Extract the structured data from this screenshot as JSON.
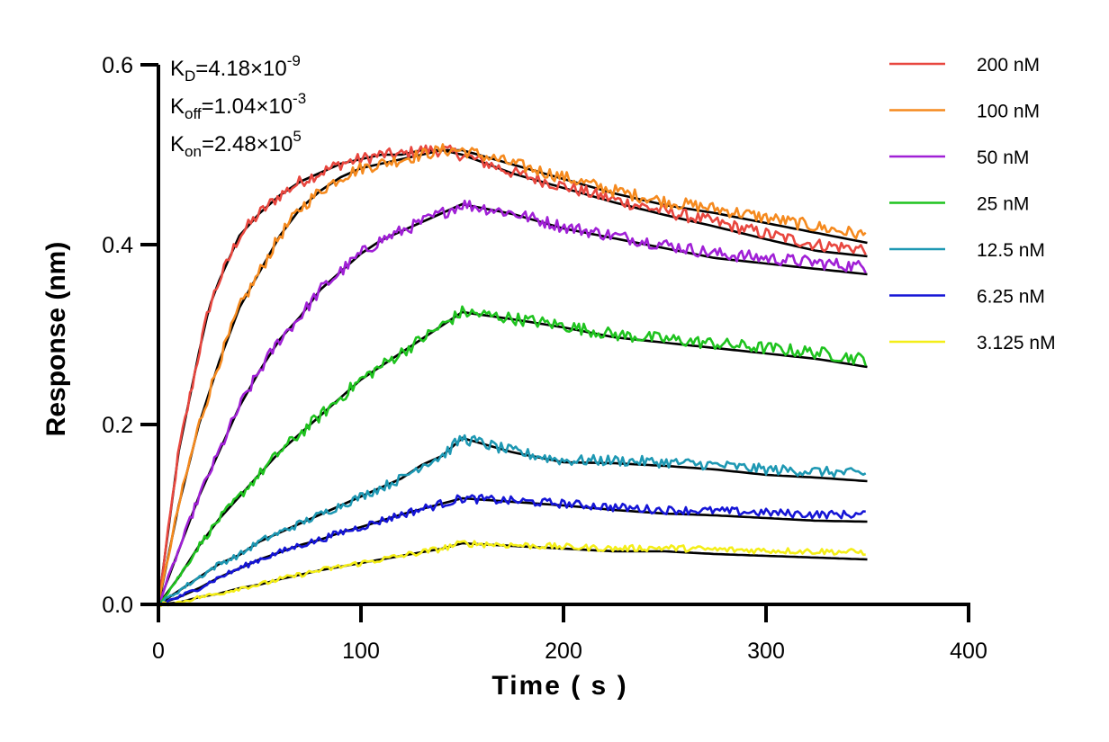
{
  "chart_data": {
    "type": "line",
    "xlabel": "Time ( s )",
    "ylabel": "Response (nm)",
    "xlim": [
      0,
      400
    ],
    "ylim": [
      0,
      0.6
    ],
    "x_ticks": [
      "0",
      "100",
      "200",
      "300",
      "400"
    ],
    "y_ticks": [
      "0.0",
      "0.2",
      "0.4",
      "0.6"
    ],
    "grid": false,
    "legend_position": "top-right",
    "annotations": [
      {
        "main": "K",
        "sub": "D",
        "rest": "=4.18×10",
        "sup": "-9"
      },
      {
        "main": "K",
        "sub": "off",
        "rest": "=1.04×10",
        "sup": "-3"
      },
      {
        "main": "K",
        "sub": "on",
        "rest": "=2.48×10",
        "sup": "5"
      }
    ],
    "fit_color": "#000000",
    "series": [
      {
        "name": "200 nM",
        "color": "#e8473f",
        "x": [
          0,
          10,
          20,
          25,
          30,
          40,
          50,
          60,
          70,
          80,
          90,
          100,
          110,
          120,
          130,
          140,
          150,
          175,
          200,
          225,
          250,
          275,
          300,
          325,
          350
        ],
        "y": [
          0,
          0.17,
          0.28,
          0.33,
          0.36,
          0.41,
          0.435,
          0.455,
          0.47,
          0.48,
          0.49,
          0.495,
          0.5,
          0.5,
          0.505,
          0.505,
          0.5,
          0.48,
          0.465,
          0.45,
          0.437,
          0.425,
          0.412,
          0.4,
          0.395
        ]
      },
      {
        "name": "100 nM",
        "color": "#f58a1f",
        "x": [
          0,
          10,
          20,
          30,
          40,
          50,
          60,
          70,
          80,
          90,
          100,
          110,
          120,
          130,
          140,
          150,
          175,
          200,
          225,
          250,
          275,
          300,
          325,
          350
        ],
        "y": [
          0,
          0.11,
          0.2,
          0.27,
          0.33,
          0.37,
          0.41,
          0.44,
          0.46,
          0.475,
          0.485,
          0.49,
          0.495,
          0.5,
          0.505,
          0.505,
          0.49,
          0.475,
          0.46,
          0.448,
          0.44,
          0.43,
          0.42,
          0.41
        ]
      },
      {
        "name": "50 nM",
        "color": "#a020d6",
        "x": [
          0,
          10,
          20,
          30,
          40,
          50,
          60,
          70,
          80,
          90,
          100,
          110,
          120,
          130,
          140,
          150,
          175,
          200,
          225,
          250,
          275,
          300,
          325,
          350
        ],
        "y": [
          0,
          0.06,
          0.12,
          0.17,
          0.22,
          0.26,
          0.295,
          0.32,
          0.35,
          0.37,
          0.39,
          0.405,
          0.415,
          0.425,
          0.435,
          0.445,
          0.435,
          0.42,
          0.41,
          0.4,
          0.39,
          0.385,
          0.38,
          0.375
        ]
      },
      {
        "name": "25 nM",
        "color": "#1fc31f",
        "x": [
          0,
          10,
          20,
          30,
          40,
          50,
          60,
          70,
          80,
          90,
          100,
          110,
          120,
          130,
          140,
          150,
          175,
          200,
          225,
          250,
          275,
          300,
          325,
          350
        ],
        "y": [
          0,
          0.03,
          0.065,
          0.095,
          0.12,
          0.145,
          0.17,
          0.19,
          0.21,
          0.23,
          0.25,
          0.265,
          0.28,
          0.295,
          0.31,
          0.325,
          0.318,
          0.31,
          0.3,
          0.295,
          0.29,
          0.285,
          0.28,
          0.272
        ]
      },
      {
        "name": "12.5 nM",
        "color": "#1e98b3",
        "x": [
          0,
          10,
          20,
          30,
          40,
          50,
          60,
          70,
          80,
          90,
          100,
          110,
          120,
          130,
          140,
          150,
          175,
          200,
          225,
          250,
          275,
          300,
          325,
          350
        ],
        "y": [
          0,
          0.015,
          0.03,
          0.045,
          0.055,
          0.07,
          0.08,
          0.09,
          0.1,
          0.11,
          0.12,
          0.13,
          0.14,
          0.155,
          0.165,
          0.185,
          0.17,
          0.16,
          0.16,
          0.158,
          0.155,
          0.15,
          0.148,
          0.145
        ]
      },
      {
        "name": "6.25 nM",
        "color": "#1515d6",
        "x": [
          0,
          10,
          20,
          30,
          40,
          50,
          60,
          70,
          80,
          90,
          100,
          110,
          120,
          130,
          140,
          150,
          175,
          200,
          225,
          250,
          275,
          300,
          325,
          350
        ],
        "y": [
          0,
          0.008,
          0.018,
          0.03,
          0.04,
          0.05,
          0.058,
          0.066,
          0.072,
          0.08,
          0.086,
          0.093,
          0.1,
          0.106,
          0.112,
          0.118,
          0.115,
          0.112,
          0.108,
          0.105,
          0.104,
          0.102,
          0.1,
          0.1
        ]
      },
      {
        "name": "3.125 nM",
        "color": "#f4ee18",
        "x": [
          0,
          10,
          20,
          30,
          40,
          50,
          60,
          70,
          80,
          90,
          100,
          110,
          120,
          130,
          140,
          150,
          175,
          200,
          225,
          250,
          275,
          300,
          325,
          350
        ],
        "y": [
          0,
          0.002,
          0.008,
          0.012,
          0.018,
          0.022,
          0.028,
          0.033,
          0.038,
          0.042,
          0.046,
          0.05,
          0.054,
          0.058,
          0.062,
          0.068,
          0.066,
          0.064,
          0.062,
          0.063,
          0.061,
          0.06,
          0.059,
          0.058
        ]
      }
    ]
  }
}
